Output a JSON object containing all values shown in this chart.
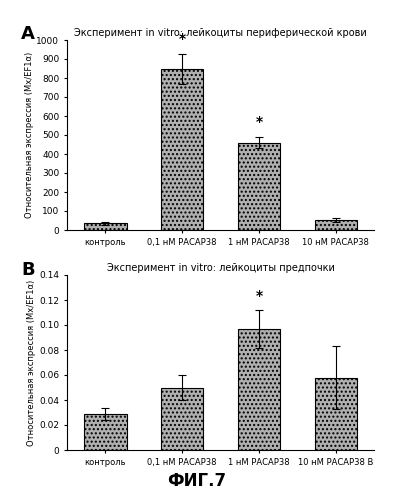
{
  "panel_A": {
    "title": "Эксперимент in vitro: лейкоциты периферической крови",
    "categories": [
      "контроль",
      "0,1 нМ РАСАР38",
      "1 нМ РАСАР38",
      "10 нМ РАСАР38"
    ],
    "values": [
      35,
      848,
      460,
      52
    ],
    "errors": [
      8,
      80,
      30,
      10
    ],
    "starred": [
      false,
      true,
      true,
      false
    ],
    "ylabel": "Относительная экспресcия (Mx/EF1α)",
    "ylim": [
      0,
      1000
    ],
    "yticks": [
      0,
      100,
      200,
      300,
      400,
      500,
      600,
      700,
      800,
      900,
      1000
    ],
    "yticklabels": [
      "0",
      "100",
      "200",
      "300",
      "400",
      "500",
      "600",
      "700",
      "800",
      "900",
      "1000"
    ]
  },
  "panel_B": {
    "title": "Эксперимент in vitro: лейкоциты предпочки",
    "categories": [
      "контроль",
      "0,1 нМ РАСАР38",
      "1 нМ РАСАР38",
      "10 нМ РАСАР38 B"
    ],
    "values": [
      0.029,
      0.05,
      0.097,
      0.058
    ],
    "errors": [
      0.005,
      0.01,
      0.015,
      0.025
    ],
    "starred": [
      false,
      false,
      true,
      false
    ],
    "ylabel": "Относительная экспресcия (Mx/EF1α)",
    "ylim": [
      0,
      0.14
    ],
    "yticks": [
      0.0,
      0.02,
      0.04,
      0.06,
      0.08,
      0.1,
      0.12,
      0.14
    ],
    "yticklabels": [
      "0",
      "0.02",
      "0.04",
      "0.06",
      "0.08",
      "0.10",
      "0.12",
      "0.14"
    ]
  },
  "fig_label": "ФИГ.7",
  "bar_facecolor": "#b0b0b0",
  "bar_edgecolor": "#000000",
  "background_color": "#ffffff",
  "label_A": "A",
  "label_B": "B"
}
